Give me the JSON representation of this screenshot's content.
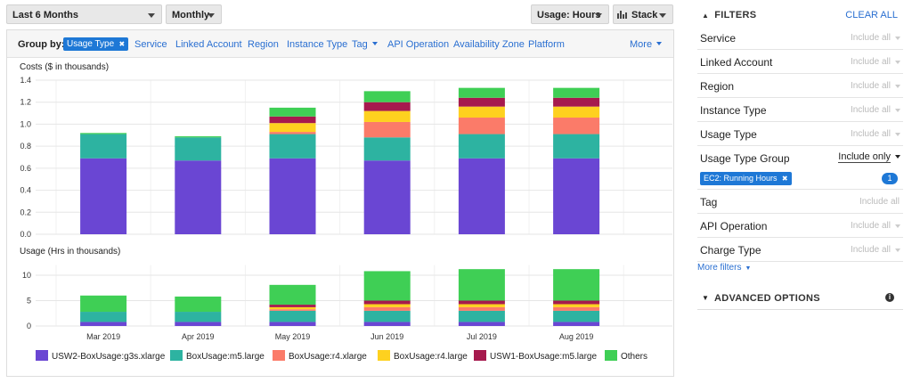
{
  "toolbar": {
    "range": "Last 6 Months",
    "granularity": "Monthly",
    "usage": "Usage: Hours",
    "view": "Stack"
  },
  "group_by": {
    "label": "Group by:",
    "selected": "Usage Type",
    "options": [
      "Service",
      "Linked Account",
      "Region",
      "Instance Type",
      "Tag",
      "API Operation",
      "Availability Zone",
      "Platform"
    ],
    "more": "More"
  },
  "chart_data": [
    {
      "type": "bar",
      "stacked": true,
      "title": "Costs ($ in thousands)",
      "ylim": [
        0,
        1.4
      ],
      "yticks": [
        {
          "value": 0,
          "label": "0.0"
        },
        0.2,
        0.4,
        0.6,
        0.8,
        {
          "value": 1,
          "label": "1.0"
        },
        1.2,
        1.4
      ],
      "grid": true,
      "series": [
        {
          "color": "#6a46d3",
          "values": [
            0.69,
            0.67,
            0.69,
            0.67,
            0.69,
            0.69
          ]
        },
        {
          "color": "#2db3a1",
          "values": [
            0.22,
            0.21,
            0.22,
            0.21,
            0.22,
            0.22
          ]
        },
        {
          "color": "#fb7b69",
          "values": [
            0,
            0,
            0.02,
            0.14,
            0.15,
            0.15
          ]
        },
        {
          "color": "#fed11f",
          "values": [
            0,
            0,
            0.08,
            0.1,
            0.1,
            0.1
          ]
        },
        {
          "color": "#a61a4e",
          "values": [
            0,
            0,
            0.06,
            0.08,
            0.08,
            0.08
          ]
        },
        {
          "color": "#3fcf55",
          "values": [
            0.01,
            0.01,
            0.08,
            0.1,
            0.09,
            0.09
          ]
        }
      ]
    },
    {
      "type": "bar",
      "stacked": true,
      "title": "Usage (Hrs in thousands)",
      "ylim": [
        0,
        12
      ],
      "yticks": [
        0,
        5,
        10
      ],
      "grid": true,
      "categories": [
        "Mar 2019",
        "Apr 2019",
        "May 2019",
        "Jun 2019",
        "Jul 2019",
        "Aug 2019"
      ],
      "series": [
        {
          "name": "USW2-BoxUsage:g3s.xlarge",
          "color": "#6a46d3",
          "values": [
            0.8,
            0.8,
            0.8,
            0.8,
            0.8,
            0.8
          ]
        },
        {
          "name": "BoxUsage:m5.large",
          "color": "#2db3a1",
          "values": [
            2.0,
            2.0,
            2.2,
            2.2,
            2.2,
            2.2
          ]
        },
        {
          "name": "BoxUsage:r4.xlarge",
          "color": "#fb7b69",
          "values": [
            0,
            0,
            0.3,
            0.7,
            0.7,
            0.7
          ]
        },
        {
          "name": "BoxUsage:r4.large",
          "color": "#fed11f",
          "values": [
            0,
            0,
            0.4,
            0.6,
            0.6,
            0.6
          ]
        },
        {
          "name": "USW1-BoxUsage:m5.large",
          "color": "#a61a4e",
          "values": [
            0,
            0,
            0.5,
            0.7,
            0.7,
            0.7
          ]
        },
        {
          "name": "Others",
          "color": "#3fcf55",
          "values": [
            3.2,
            3.0,
            3.9,
            5.8,
            6.2,
            6.2
          ]
        }
      ]
    }
  ],
  "filters": {
    "title": "FILTERS",
    "clear": "CLEAR ALL",
    "rows": [
      {
        "name": "Service",
        "value": "Include all"
      },
      {
        "name": "Linked Account",
        "value": "Include all"
      },
      {
        "name": "Region",
        "value": "Include all"
      },
      {
        "name": "Instance Type",
        "value": "Include all"
      },
      {
        "name": "Usage Type",
        "value": "Include all"
      },
      {
        "name": "Usage Type Group",
        "value": "Include only",
        "chip": "EC2: Running Hours",
        "count": 1
      },
      {
        "name": "Tag",
        "value": "Include all"
      },
      {
        "name": "API Operation",
        "value": "Include all"
      },
      {
        "name": "Charge Type",
        "value": "Include all"
      }
    ],
    "more": "More filters",
    "advanced": "ADVANCED OPTIONS"
  }
}
